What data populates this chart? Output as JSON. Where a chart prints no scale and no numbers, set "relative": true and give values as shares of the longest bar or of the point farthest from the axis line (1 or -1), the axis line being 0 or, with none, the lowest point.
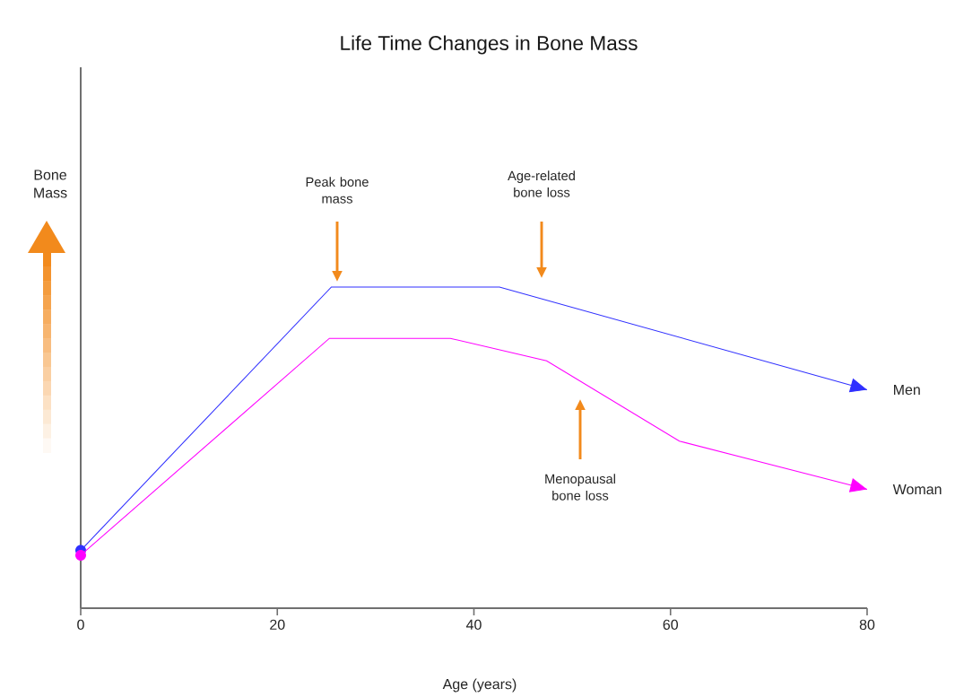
{
  "chart_data": {
    "type": "line",
    "title": "Life Time Changes in Bone Mass",
    "xlabel": "Age  (years)",
    "relative": true,
    "xlim": [
      0,
      80
    ],
    "xticks": [
      0,
      20,
      40,
      60,
      80
    ],
    "legend": "right",
    "annotations": [
      "Peak bone mass",
      "Age-related bone loss",
      "Menopausal bone loss",
      "Bone Mass"
    ],
    "series": [
      {
        "name": "Men",
        "color": "#3030ff",
        "x": [
          0,
          25.5,
          42.6,
          80
        ],
        "values": [
          0.18,
          1,
          1,
          0.68
        ]
      },
      {
        "name": "Woman",
        "color": "#ff00ff",
        "x": [
          0,
          25.3,
          37.6,
          47.4,
          60.9,
          80
        ],
        "values": [
          0.165,
          0.84,
          0.84,
          0.77,
          0.52,
          0.37
        ]
      }
    ]
  }
}
